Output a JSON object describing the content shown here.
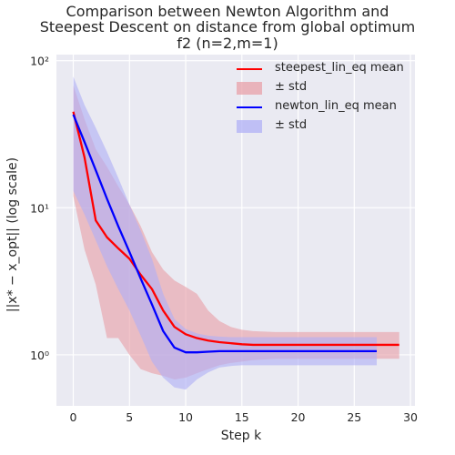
{
  "chart_data": {
    "type": "line",
    "title_lines": [
      "Comparison between Newton Algorithm and",
      "Steepest Descent on distance from global optimum",
      "f2 (n=2,m=1)"
    ],
    "xlabel": "Step k",
    "ylabel": "||x* − x_opt|| (log scale)",
    "yscale": "log",
    "xlim": [
      -1.5,
      30.4
    ],
    "ylim": [
      0.45,
      110
    ],
    "x_ticks": [
      0,
      5,
      10,
      15,
      20,
      25,
      30
    ],
    "x_tick_labels": [
      "0",
      "5",
      "10",
      "15",
      "20",
      "25",
      "30"
    ],
    "y_ticks": [
      1,
      10,
      100
    ],
    "y_tick_labels": [
      "10⁰",
      "10¹",
      "10²"
    ],
    "grid": true,
    "legend_position": "top-right",
    "series": [
      {
        "name": "steepest_lin_eq mean",
        "band_label": "± std",
        "color": "#ff0000",
        "band_color": "#e8a0a8",
        "x": [
          0,
          1,
          2,
          3,
          4,
          5,
          6,
          7,
          8,
          9,
          10,
          11,
          12,
          13,
          14,
          15,
          16,
          17,
          18,
          19,
          20,
          21,
          22,
          23,
          24,
          25,
          26,
          27,
          28,
          29
        ],
        "mean": [
          45,
          22,
          8.2,
          6.3,
          5.3,
          4.5,
          3.5,
          2.8,
          2.0,
          1.55,
          1.38,
          1.3,
          1.25,
          1.22,
          1.2,
          1.18,
          1.17,
          1.17,
          1.17,
          1.17,
          1.17,
          1.17,
          1.17,
          1.17,
          1.17,
          1.17,
          1.17,
          1.17,
          1.17,
          1.17
        ],
        "upper": [
          68,
          40,
          25,
          19,
          14,
          10.5,
          7.5,
          5.0,
          3.8,
          3.2,
          2.9,
          2.6,
          2.0,
          1.7,
          1.55,
          1.48,
          1.45,
          1.44,
          1.43,
          1.43,
          1.43,
          1.43,
          1.43,
          1.43,
          1.43,
          1.43,
          1.43,
          1.43,
          1.43,
          1.43
        ],
        "lower": [
          12,
          5.2,
          3.0,
          1.3,
          1.3,
          1.0,
          0.8,
          0.75,
          0.72,
          0.68,
          0.7,
          0.75,
          0.8,
          0.85,
          0.88,
          0.9,
          0.92,
          0.93,
          0.94,
          0.94,
          0.94,
          0.94,
          0.94,
          0.94,
          0.94,
          0.94,
          0.94,
          0.94,
          0.94,
          0.94
        ]
      },
      {
        "name": "newton_lin_eq mean",
        "band_label": "± std",
        "color": "#0000ff",
        "band_color": "#b0b0f5",
        "x": [
          0,
          1,
          2,
          3,
          4,
          5,
          6,
          7,
          8,
          9,
          10,
          11,
          12,
          13,
          14,
          15,
          16,
          17,
          18,
          19,
          20,
          21,
          22,
          23,
          24,
          25,
          26,
          27
        ],
        "mean": [
          43,
          28,
          18,
          11.5,
          7.5,
          5.0,
          3.3,
          2.2,
          1.45,
          1.12,
          1.04,
          1.04,
          1.05,
          1.06,
          1.06,
          1.06,
          1.06,
          1.06,
          1.06,
          1.06,
          1.06,
          1.06,
          1.06,
          1.06,
          1.06,
          1.06,
          1.06,
          1.06
        ],
        "upper": [
          78,
          50,
          35,
          24,
          16,
          10.5,
          7.0,
          4.5,
          2.6,
          1.75,
          1.5,
          1.4,
          1.35,
          1.33,
          1.32,
          1.32,
          1.32,
          1.32,
          1.32,
          1.32,
          1.32,
          1.32,
          1.32,
          1.32,
          1.32,
          1.32,
          1.32,
          1.32
        ],
        "lower": [
          13,
          9,
          6,
          4,
          2.8,
          2.0,
          1.35,
          0.9,
          0.7,
          0.6,
          0.58,
          0.68,
          0.76,
          0.82,
          0.84,
          0.85,
          0.85,
          0.85,
          0.85,
          0.85,
          0.85,
          0.85,
          0.85,
          0.85,
          0.85,
          0.85,
          0.85,
          0.85
        ]
      }
    ]
  }
}
